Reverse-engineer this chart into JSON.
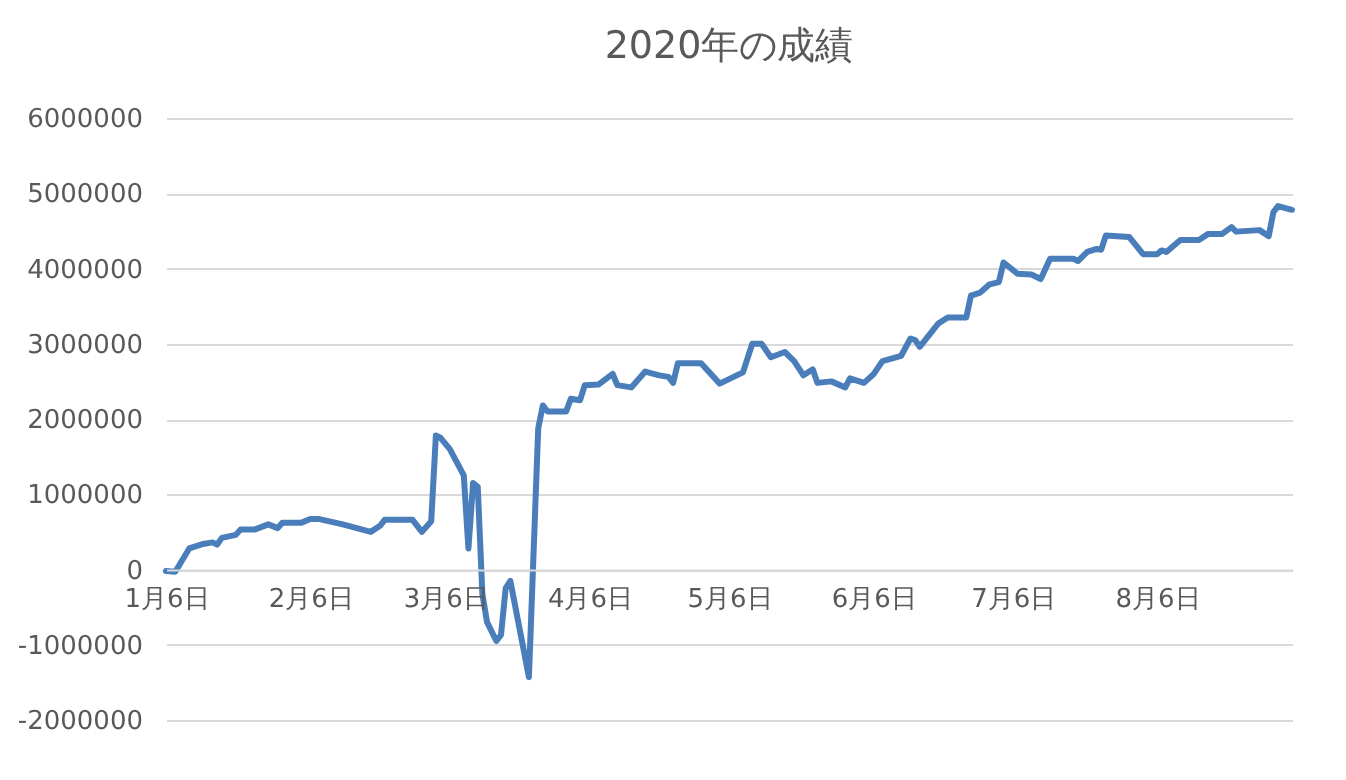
{
  "chart_data": {
    "type": "line",
    "title": "2020年の成績",
    "x": [
      "2020-01-06",
      "2020-01-08",
      "2020-01-11",
      "2020-01-14",
      "2020-01-16",
      "2020-01-17",
      "2020-01-18",
      "2020-01-21",
      "2020-01-22",
      "2020-01-25",
      "2020-01-28",
      "2020-01-30",
      "2020-01-31",
      "2020-02-04",
      "2020-02-06",
      "2020-02-08",
      "2020-02-13",
      "2020-02-19",
      "2020-02-21",
      "2020-02-22",
      "2020-02-28",
      "2020-03-01",
      "2020-03-03",
      "2020-03-04",
      "2020-03-05",
      "2020-03-07",
      "2020-03-10",
      "2020-03-11",
      "2020-03-12",
      "2020-03-13",
      "2020-03-14",
      "2020-03-15",
      "2020-03-17",
      "2020-03-18",
      "2020-03-19",
      "2020-03-20",
      "2020-03-24",
      "2020-03-26",
      "2020-03-27",
      "2020-03-28",
      "2020-04-01",
      "2020-04-02",
      "2020-04-04",
      "2020-04-05",
      "2020-04-08",
      "2020-04-11",
      "2020-04-12",
      "2020-04-15",
      "2020-04-18",
      "2020-04-21",
      "2020-04-23",
      "2020-04-24",
      "2020-04-25",
      "2020-04-30",
      "2020-05-04",
      "2020-05-09",
      "2020-05-11",
      "2020-05-13",
      "2020-05-15",
      "2020-05-18",
      "2020-05-20",
      "2020-05-22",
      "2020-05-24",
      "2020-05-25",
      "2020-05-28",
      "2020-05-31",
      "2020-06-01",
      "2020-06-04",
      "2020-06-06",
      "2020-06-08",
      "2020-06-12",
      "2020-06-14",
      "2020-06-15",
      "2020-06-16",
      "2020-06-20",
      "2020-06-22",
      "2020-06-26",
      "2020-06-27",
      "2020-06-29",
      "2020-07-01",
      "2020-07-03",
      "2020-07-04",
      "2020-07-07",
      "2020-07-10",
      "2020-07-12",
      "2020-07-14",
      "2020-07-19",
      "2020-07-20",
      "2020-07-22",
      "2020-07-24",
      "2020-07-25",
      "2020-07-26",
      "2020-07-31",
      "2020-08-03",
      "2020-08-06",
      "2020-08-07",
      "2020-08-08",
      "2020-08-11",
      "2020-08-15",
      "2020-08-17",
      "2020-08-20",
      "2020-08-22",
      "2020-08-23",
      "2020-08-28",
      "2020-08-30",
      "2020-08-31",
      "2020-09-01",
      "2020-09-04"
    ],
    "series": [
      {
        "color": "#4a7ebb",
        "values": [
          -20000,
          -30000,
          280000,
          340000,
          360000,
          330000,
          420000,
          460000,
          530000,
          530000,
          600000,
          550000,
          620000,
          620000,
          670000,
          670000,
          600000,
          500000,
          580000,
          660000,
          660000,
          500000,
          640000,
          1780000,
          1750000,
          1600000,
          1250000,
          280000,
          1150000,
          1100000,
          -330000,
          -700000,
          -950000,
          -870000,
          -250000,
          -150000,
          -1430000,
          1880000,
          2180000,
          2100000,
          2100000,
          2270000,
          2250000,
          2450000,
          2460000,
          2600000,
          2450000,
          2420000,
          2630000,
          2580000,
          2560000,
          2480000,
          2740000,
          2740000,
          2470000,
          2620000,
          3000000,
          3000000,
          2820000,
          2890000,
          2770000,
          2580000,
          2660000,
          2480000,
          2500000,
          2420000,
          2540000,
          2480000,
          2590000,
          2770000,
          2840000,
          3070000,
          3050000,
          2960000,
          3270000,
          3350000,
          3350000,
          3640000,
          3680000,
          3790000,
          3820000,
          4080000,
          3930000,
          3920000,
          3860000,
          4130000,
          4130000,
          4100000,
          4220000,
          4260000,
          4250000,
          4440000,
          4420000,
          4190000,
          4190000,
          4240000,
          4220000,
          4380000,
          4380000,
          4460000,
          4460000,
          4550000,
          4490000,
          4510000,
          4430000,
          4750000,
          4830000,
          4780000
        ]
      }
    ],
    "xlim": [
      "2020-01-06",
      "2020-09-04"
    ],
    "xticks": [
      {
        "value": "2020-01-06",
        "label": "1月6日"
      },
      {
        "value": "2020-02-06",
        "label": "2月6日"
      },
      {
        "value": "2020-03-06",
        "label": "3月6日"
      },
      {
        "value": "2020-04-06",
        "label": "4月6日"
      },
      {
        "value": "2020-05-06",
        "label": "5月6日"
      },
      {
        "value": "2020-06-06",
        "label": "6月6日"
      },
      {
        "value": "2020-07-06",
        "label": "7月6日"
      },
      {
        "value": "2020-08-06",
        "label": "8月6日"
      }
    ],
    "ylim": [
      -2000000,
      6000000
    ],
    "yticks": [
      -2000000,
      -1000000,
      0,
      1000000,
      2000000,
      3000000,
      4000000,
      5000000,
      6000000
    ],
    "grid": "y",
    "marker": "none",
    "line_style": "solid"
  }
}
